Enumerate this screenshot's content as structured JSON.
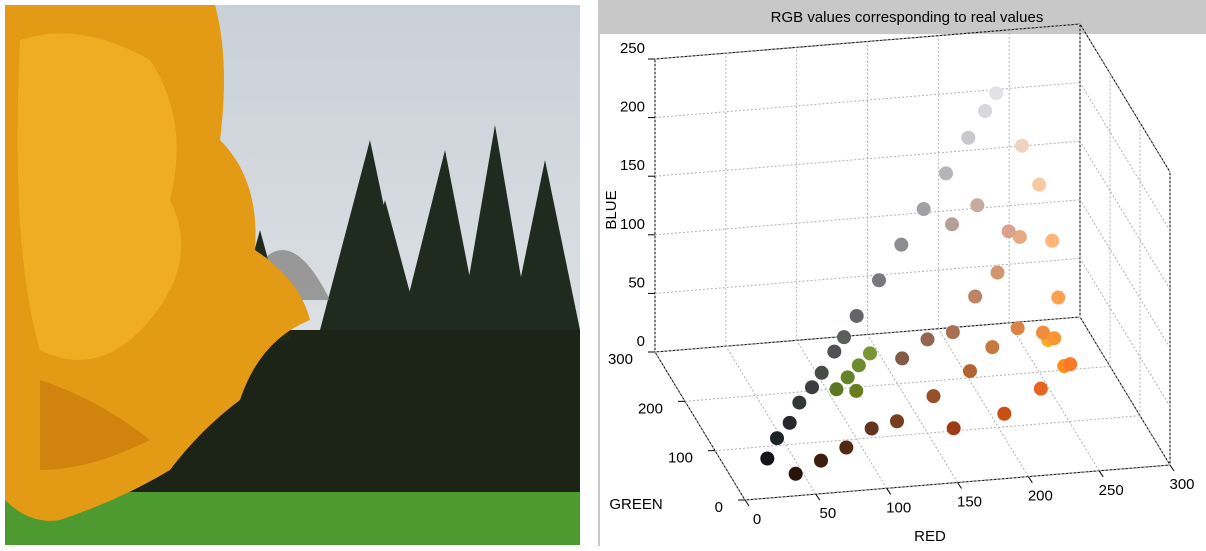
{
  "chart_data": {
    "type": "scatter3d",
    "title": "RGB values corresponding to real values",
    "xlabel": "RED",
    "ylabel": "GREEN",
    "zlabel": "BLUE",
    "xlim": [
      0,
      300
    ],
    "ylim": [
      0,
      300
    ],
    "zlim": [
      0,
      250
    ],
    "xticks": [
      0,
      50,
      100,
      150,
      200,
      250,
      300
    ],
    "yticks": [
      0,
      100,
      200,
      300
    ],
    "zticks": [
      0,
      50,
      100,
      150,
      200,
      250
    ],
    "grid": true,
    "x": [
      20,
      40,
      60,
      80,
      100,
      120,
      140,
      160,
      180,
      200,
      215,
      225,
      30,
      50,
      70,
      90,
      120,
      150,
      180,
      200,
      220,
      240,
      250,
      255,
      255,
      250,
      240,
      230,
      210,
      190,
      170,
      150,
      130,
      100,
      80,
      60,
      40,
      160,
      200,
      230,
      255,
      255,
      250,
      220,
      200,
      180,
      100,
      110,
      90,
      120,
      105
    ],
    "y": [
      20,
      40,
      60,
      80,
      100,
      120,
      140,
      160,
      180,
      200,
      215,
      225,
      35,
      55,
      75,
      95,
      60,
      80,
      100,
      120,
      130,
      140,
      150,
      160,
      180,
      200,
      210,
      170,
      150,
      130,
      110,
      100,
      90,
      50,
      40,
      30,
      20,
      60,
      80,
      100,
      120,
      140,
      170,
      160,
      170,
      160,
      130,
      140,
      120,
      150,
      125
    ],
    "z": [
      25,
      45,
      65,
      85,
      105,
      125,
      145,
      165,
      185,
      205,
      220,
      230,
      35,
      55,
      70,
      90,
      30,
      40,
      50,
      60,
      70,
      60,
      50,
      80,
      120,
      160,
      190,
      130,
      110,
      100,
      80,
      80,
      70,
      30,
      20,
      15,
      10,
      20,
      20,
      30,
      40,
      30,
      40,
      140,
      160,
      150,
      40,
      45,
      35,
      50,
      30
    ]
  }
}
